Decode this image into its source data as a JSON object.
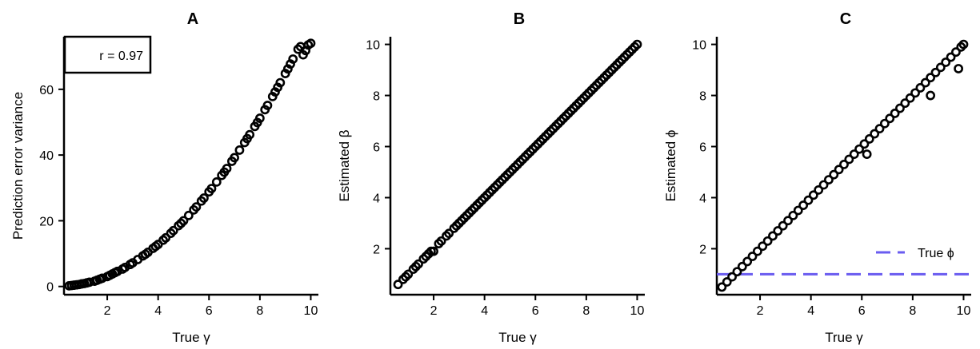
{
  "chart_data": [
    {
      "type": "scatter",
      "panel": "A",
      "title": "A",
      "xlabel": "True γ",
      "ylabel": "Prediction error variance",
      "xlim": [
        0.3,
        10.3
      ],
      "ylim": [
        -2.5,
        76
      ],
      "xticks": [
        2,
        4,
        6,
        8,
        10
      ],
      "yticks": [
        0,
        20,
        40,
        60
      ],
      "annotation": "r = 0.97",
      "annotation_position": "top-left",
      "marker": "open-circle",
      "x": [
        0.5,
        0.6,
        0.7,
        0.8,
        0.9,
        1.0,
        1.1,
        1.2,
        1.3,
        1.5,
        1.6,
        1.7,
        1.8,
        2.0,
        2.1,
        2.2,
        2.3,
        2.4,
        2.6,
        2.7,
        2.9,
        3.0,
        3.2,
        3.4,
        3.5,
        3.6,
        3.8,
        3.9,
        4.0,
        4.2,
        4.3,
        4.5,
        4.6,
        4.8,
        4.9,
        5.0,
        5.2,
        5.4,
        5.5,
        5.7,
        5.8,
        6.0,
        6.1,
        6.3,
        6.5,
        6.6,
        6.7,
        6.9,
        7.0,
        7.2,
        7.4,
        7.5,
        7.6,
        7.8,
        7.9,
        8.0,
        8.2,
        8.3,
        8.5,
        8.6,
        8.7,
        8.8,
        9.0,
        9.1,
        9.2,
        9.3,
        9.5,
        9.6,
        9.7,
        9.8,
        9.9,
        10.0
      ],
      "y": [
        0.2,
        0.3,
        0.4,
        0.5,
        0.6,
        0.8,
        0.9,
        1.1,
        1.3,
        1.6,
        1.9,
        2.2,
        2.5,
        3.0,
        3.4,
        3.8,
        4.2,
        4.6,
        5.3,
        5.8,
        6.7,
        7.2,
        8.2,
        9.3,
        9.8,
        10.4,
        11.6,
        12.2,
        12.8,
        14.1,
        14.8,
        16.2,
        17.0,
        18.5,
        19.2,
        20.0,
        21.6,
        23.3,
        24.2,
        26.0,
        26.9,
        28.8,
        29.8,
        31.8,
        33.8,
        34.8,
        35.9,
        38.1,
        39.2,
        41.5,
        43.8,
        45.0,
        46.2,
        48.7,
        49.9,
        51.2,
        53.8,
        55.1,
        57.8,
        59.2,
        60.6,
        62.0,
        64.8,
        66.2,
        67.7,
        69.2,
        72.2,
        73.0,
        70.5,
        71.8,
        73.5,
        74.0
      ]
    },
    {
      "type": "scatter",
      "panel": "B",
      "title": "B",
      "xlabel": "True γ",
      "ylabel": "Estimated β",
      "xlim": [
        0.3,
        10.3
      ],
      "ylim": [
        0.2,
        10.3
      ],
      "xticks": [
        2,
        4,
        6,
        8,
        10
      ],
      "yticks": [
        2,
        4,
        6,
        8,
        10
      ],
      "marker": "open-circle",
      "x": [
        0.6,
        0.8,
        0.9,
        1.0,
        1.2,
        1.3,
        1.4,
        1.6,
        1.7,
        1.8,
        1.9,
        2.0,
        2.2,
        2.3,
        2.5,
        2.6,
        2.8,
        2.9,
        3.0,
        3.1,
        3.2,
        3.3,
        3.4,
        3.5,
        3.6,
        3.7,
        3.8,
        3.9,
        4.0,
        4.1,
        4.2,
        4.3,
        4.4,
        4.5,
        4.6,
        4.7,
        4.8,
        4.9,
        5.0,
        5.1,
        5.2,
        5.3,
        5.4,
        5.5,
        5.6,
        5.7,
        5.8,
        5.9,
        6.0,
        6.1,
        6.2,
        6.3,
        6.4,
        6.5,
        6.6,
        6.7,
        6.8,
        6.9,
        7.0,
        7.1,
        7.2,
        7.3,
        7.4,
        7.5,
        7.6,
        7.7,
        7.8,
        7.9,
        8.0,
        8.1,
        8.2,
        8.3,
        8.4,
        8.5,
        8.6,
        8.7,
        8.8,
        8.9,
        9.0,
        9.1,
        9.2,
        9.3,
        9.4,
        9.5,
        9.6,
        9.7,
        9.8,
        9.9,
        10.0
      ],
      "y": [
        0.6,
        0.8,
        0.9,
        1.0,
        1.2,
        1.3,
        1.4,
        1.6,
        1.7,
        1.8,
        1.9,
        1.9,
        2.2,
        2.3,
        2.5,
        2.6,
        2.8,
        2.9,
        3.0,
        3.1,
        3.2,
        3.3,
        3.4,
        3.5,
        3.6,
        3.7,
        3.8,
        3.9,
        4.0,
        4.1,
        4.2,
        4.3,
        4.4,
        4.5,
        4.6,
        4.7,
        4.8,
        4.9,
        5.0,
        5.1,
        5.2,
        5.3,
        5.4,
        5.5,
        5.6,
        5.7,
        5.8,
        5.9,
        6.0,
        6.1,
        6.2,
        6.3,
        6.4,
        6.5,
        6.6,
        6.7,
        6.8,
        6.9,
        7.0,
        7.1,
        7.2,
        7.3,
        7.4,
        7.5,
        7.6,
        7.7,
        7.8,
        7.9,
        8.0,
        8.1,
        8.2,
        8.3,
        8.4,
        8.5,
        8.6,
        8.7,
        8.8,
        8.9,
        9.0,
        9.1,
        9.2,
        9.3,
        9.4,
        9.5,
        9.6,
        9.7,
        9.8,
        9.9,
        10.0
      ]
    },
    {
      "type": "scatter",
      "panel": "C",
      "title": "C",
      "xlabel": "True γ",
      "ylabel": "Estimated ϕ",
      "xlim": [
        0.3,
        10.3
      ],
      "ylim": [
        0.2,
        10.3
      ],
      "xticks": [
        2,
        4,
        6,
        8,
        10
      ],
      "yticks": [
        2,
        4,
        6,
        8,
        10
      ],
      "marker": "open-circle",
      "reference_line": {
        "y": 1.0,
        "style": "dashed",
        "color": "#6a5cf0",
        "label": "True ϕ"
      },
      "legend_position": "bottom-right",
      "x": [
        0.5,
        0.7,
        0.9,
        1.1,
        1.3,
        1.5,
        1.7,
        1.9,
        2.1,
        2.3,
        2.5,
        2.7,
        2.9,
        3.1,
        3.3,
        3.5,
        3.7,
        3.9,
        4.1,
        4.3,
        4.5,
        4.7,
        4.9,
        5.1,
        5.3,
        5.5,
        5.7,
        5.9,
        6.1,
        6.2,
        6.3,
        6.5,
        6.7,
        6.9,
        7.1,
        7.3,
        7.5,
        7.7,
        7.9,
        8.1,
        8.3,
        8.5,
        8.7,
        8.7,
        8.9,
        9.1,
        9.3,
        9.5,
        9.7,
        9.8,
        9.9,
        10.0
      ],
      "y": [
        0.5,
        0.7,
        0.9,
        1.1,
        1.3,
        1.5,
        1.7,
        1.9,
        2.1,
        2.3,
        2.5,
        2.7,
        2.9,
        3.1,
        3.3,
        3.5,
        3.7,
        3.9,
        4.1,
        4.3,
        4.5,
        4.7,
        4.9,
        5.1,
        5.3,
        5.5,
        5.7,
        5.9,
        6.1,
        5.7,
        6.3,
        6.5,
        6.7,
        6.9,
        7.1,
        7.3,
        7.5,
        7.7,
        7.9,
        8.1,
        8.3,
        8.5,
        8.7,
        8.0,
        8.9,
        9.1,
        9.3,
        9.5,
        9.7,
        9.05,
        9.9,
        10.0
      ]
    }
  ]
}
